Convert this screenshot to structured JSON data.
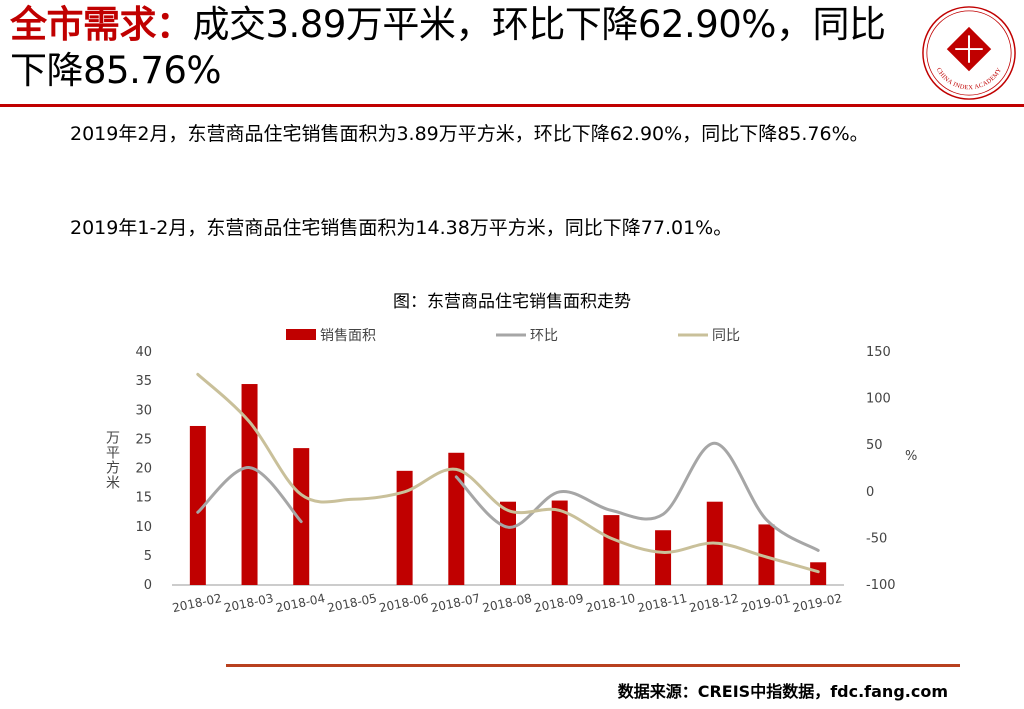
{
  "header": {
    "title_keyword": "全市需求：",
    "title_rest": "成交3.89万平米，环比下降62.90%，同比下降85.76%",
    "logo_text": "CHINA INDEX ACADEMY"
  },
  "body": {
    "paragraph_1": "2019年2月，东营商品住宅销售面积为3.89万平方米，环比下降62.90%，同比下降85.76%。",
    "paragraph_2": "2019年1-2月，东营商品住宅销售面积为14.38万平方米，同比下降77.01%。"
  },
  "chart_data": {
    "type": "bar",
    "title": "图：东营商品住宅销售面积走势",
    "categories": [
      "2018-02",
      "2018-03",
      "2018-04",
      "2018-05",
      "2018-06",
      "2018-07",
      "2018-08",
      "2018-09",
      "2018-10",
      "2018-11",
      "2018-12",
      "2019-01",
      "2019-02"
    ],
    "ylabel": "万平方米",
    "y2label": "%",
    "ylim": [
      0,
      40
    ],
    "y_ticks": [
      0,
      5,
      10,
      15,
      20,
      25,
      30,
      35,
      40
    ],
    "y2lim": [
      -100,
      150
    ],
    "y2_ticks": [
      -100,
      -50,
      0,
      50,
      100,
      150
    ],
    "grid": false,
    "legend_position": "top",
    "series": [
      {
        "name": "销售面积",
        "kind": "bar",
        "axis": "left",
        "color": "#c00000",
        "values": [
          27.3,
          34.5,
          23.5,
          null,
          19.6,
          22.7,
          14.3,
          14.5,
          12.0,
          9.4,
          14.3,
          10.4,
          3.9
        ]
      },
      {
        "name": "环比",
        "kind": "line",
        "axis": "right",
        "color": "#a6a6a6",
        "values": [
          -22,
          26,
          -32,
          null,
          null,
          16,
          -38,
          0,
          -20,
          -24,
          52,
          -30,
          -62.9
        ]
      },
      {
        "name": "同比",
        "kind": "line",
        "axis": "right",
        "color": "#c9c09a",
        "values": [
          126,
          75,
          -3,
          -8,
          0,
          24,
          -20,
          -20,
          -50,
          -65,
          -55,
          -70,
          -85.76
        ]
      }
    ]
  },
  "footer": {
    "source": "数据来源：CREIS中指数据，fdc.fang.com"
  }
}
